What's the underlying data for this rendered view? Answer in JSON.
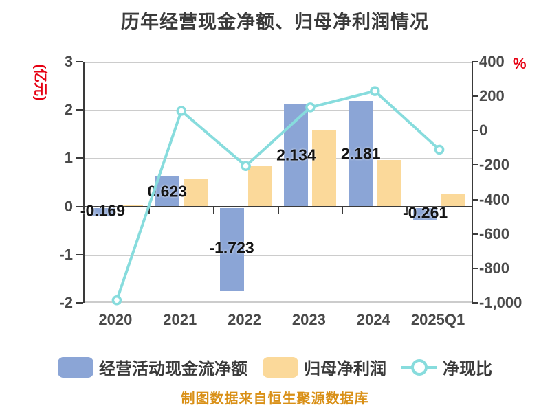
{
  "title": "历年经营现金净额、归母净利润情况",
  "caption": "制图数据来自恒生聚源数据库",
  "chart_data": {
    "type": "bar",
    "subtype": "bar-line-combo",
    "title": "历年经营现金净额、归母净利润情况",
    "categories": [
      "2020",
      "2021",
      "2022",
      "2023",
      "2024",
      "2025Q1"
    ],
    "series": [
      {
        "key": "cashflow",
        "name": "经营活动现金流净额",
        "type": "bar",
        "axis": "left",
        "color": "#8BA5D6",
        "values": [
          -0.169,
          0.623,
          -1.723,
          2.134,
          2.181,
          -0.261
        ],
        "labels": [
          "-0.169",
          "0.623",
          "-1.723",
          "2.134",
          "2.181",
          "-0.261"
        ]
      },
      {
        "key": "profit",
        "name": "归母净利润",
        "type": "bar",
        "axis": "left",
        "color": "#FBD99A",
        "values": [
          0.02,
          0.58,
          0.84,
          1.59,
          0.97,
          0.25
        ],
        "labels": []
      },
      {
        "key": "ratio",
        "name": "净现比",
        "type": "line",
        "axis": "right",
        "color": "#87DCDD",
        "values": [
          -985,
          115,
          -205,
          135,
          230,
          -110
        ],
        "labels": []
      }
    ],
    "left_axis": {
      "label": "(亿元)",
      "min": -2,
      "max": 3,
      "tick_labels": [
        "3",
        "2",
        "1",
        "0",
        "-1",
        "-2"
      ],
      "tick_values": [
        3,
        2,
        1,
        0,
        -1,
        -2
      ]
    },
    "right_axis": {
      "label": "%",
      "min": -1000,
      "max": 400,
      "tick_labels": [
        "400",
        "200",
        "0",
        "-200",
        "-400",
        "-600",
        "-800",
        "-1,000"
      ],
      "tick_values": [
        400,
        200,
        0,
        -200,
        -400,
        -600,
        -800,
        -1000
      ]
    },
    "grid": true,
    "legend_position": "bottom"
  },
  "colors": {
    "bar_blue": "#8BA5D6",
    "bar_yellow": "#FBD99A",
    "line_cyan": "#87DCDD",
    "title_text": "#3a3a3a",
    "axis_text": "#4a4a4a",
    "unit_red": "#e60012",
    "caption_orange": "#d99017",
    "gridline": "#cccccc",
    "zero_line": "#3a3a3a"
  }
}
